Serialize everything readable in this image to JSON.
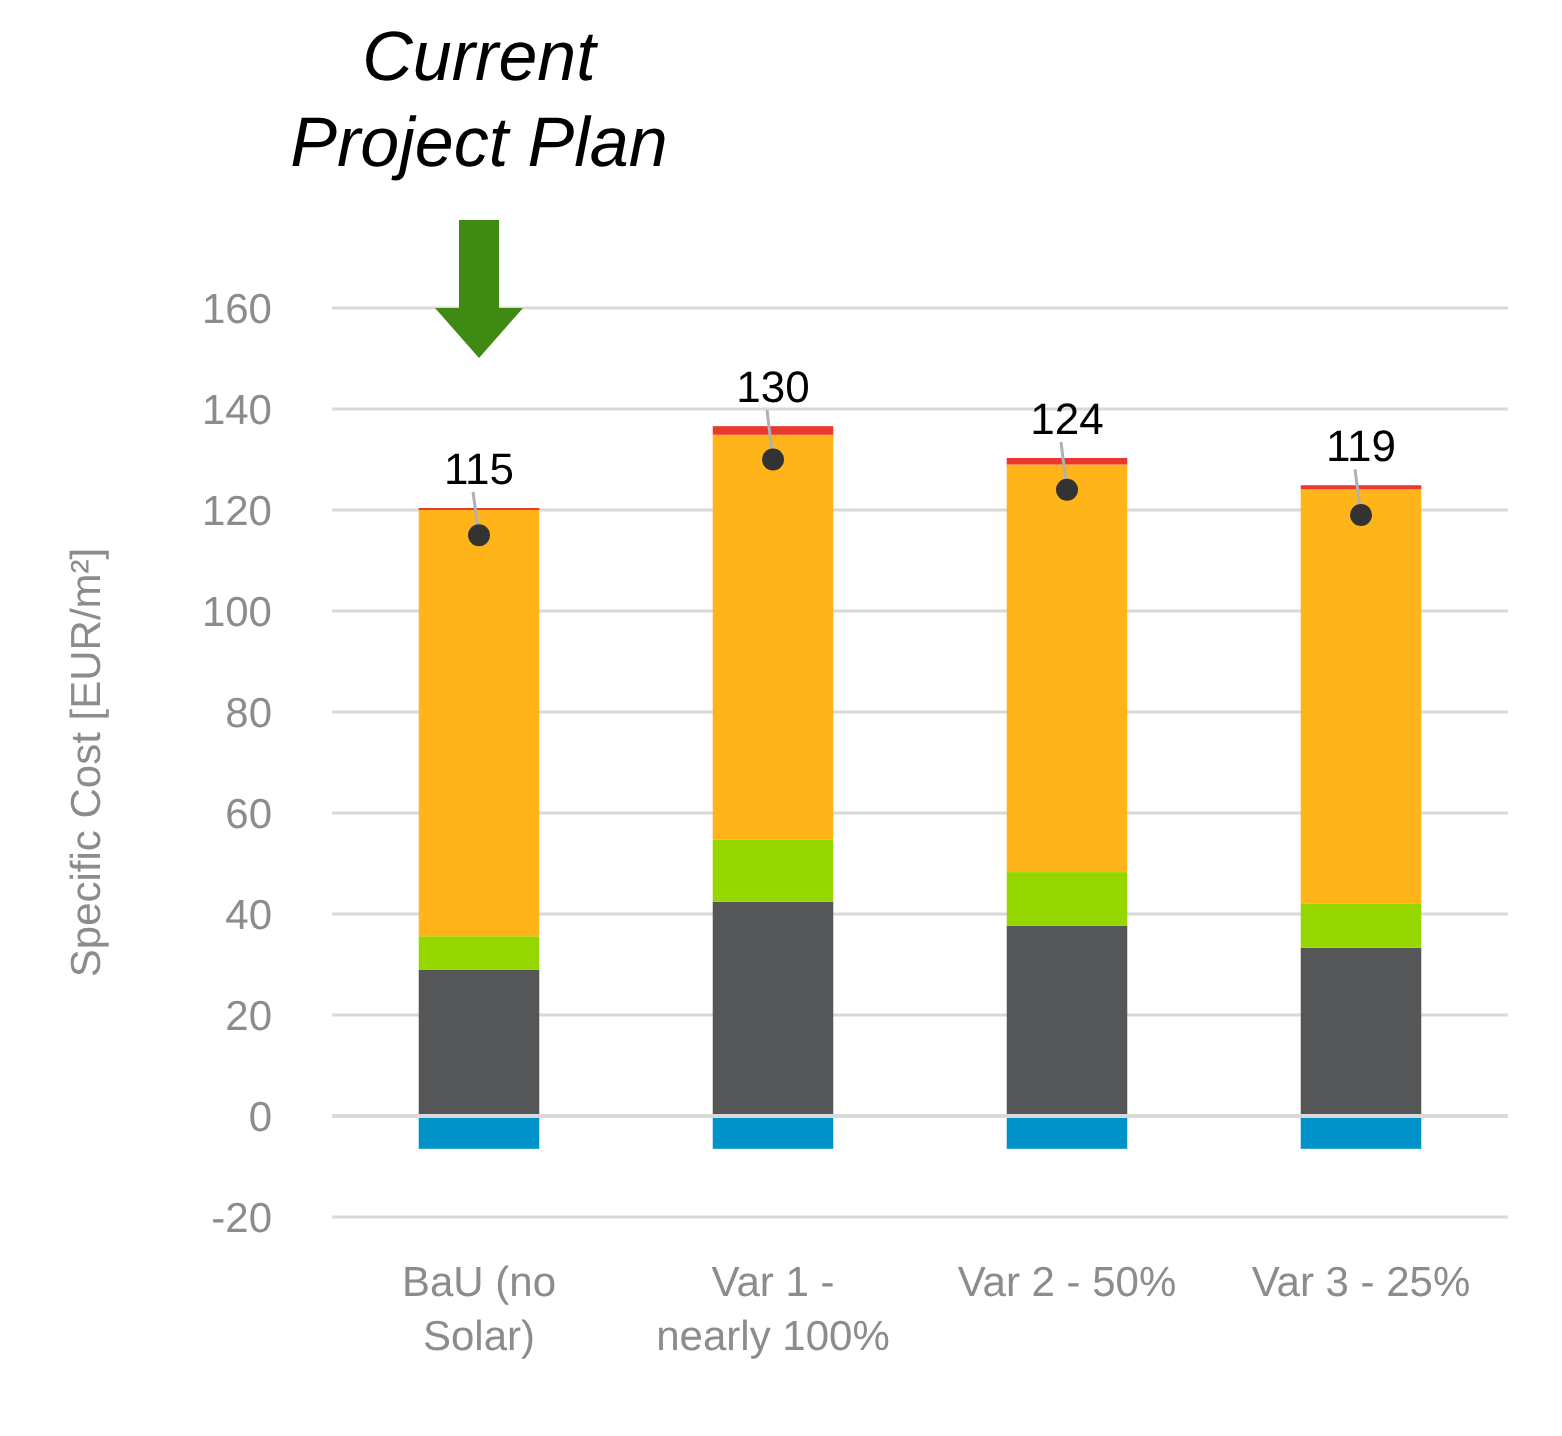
{
  "chart_data": {
    "type": "bar",
    "stacked": true,
    "ylabel": "Specific Cost [EUR/m²]",
    "categories": [
      "BaU (no Solar)",
      "Var 1 - nearly 100%",
      "Var 2 - 50%",
      "Var 3 - 25%"
    ],
    "series": [
      {
        "color": "#0093c9",
        "values": [
          -6.5,
          -6.5,
          -6.5,
          -6.5
        ]
      },
      {
        "color": "#555658",
        "values": [
          29,
          42.4,
          37.7,
          33.3
        ]
      },
      {
        "color": "#97d700",
        "values": [
          6.6,
          12.3,
          10.6,
          8.7
        ]
      },
      {
        "color": "#ffb41a",
        "values": [
          84.4,
          80.2,
          80.7,
          82.1
        ]
      },
      {
        "color": "#e8392c",
        "values": [
          0.4,
          1.7,
          1.3,
          0.8
        ]
      },
      {
        "type": "scatter",
        "color": "#333333",
        "values": [
          115,
          130,
          124,
          119
        ],
        "value_labels": [
          "115",
          "130",
          "124",
          "119"
        ]
      }
    ],
    "annotations": [
      "Current Project Plan"
    ],
    "ylim": [
      -20,
      160
    ],
    "yticks": [
      -20,
      0,
      20,
      40,
      60,
      80,
      100,
      120,
      140,
      160
    ],
    "grid": "y",
    "marker": "circle"
  }
}
